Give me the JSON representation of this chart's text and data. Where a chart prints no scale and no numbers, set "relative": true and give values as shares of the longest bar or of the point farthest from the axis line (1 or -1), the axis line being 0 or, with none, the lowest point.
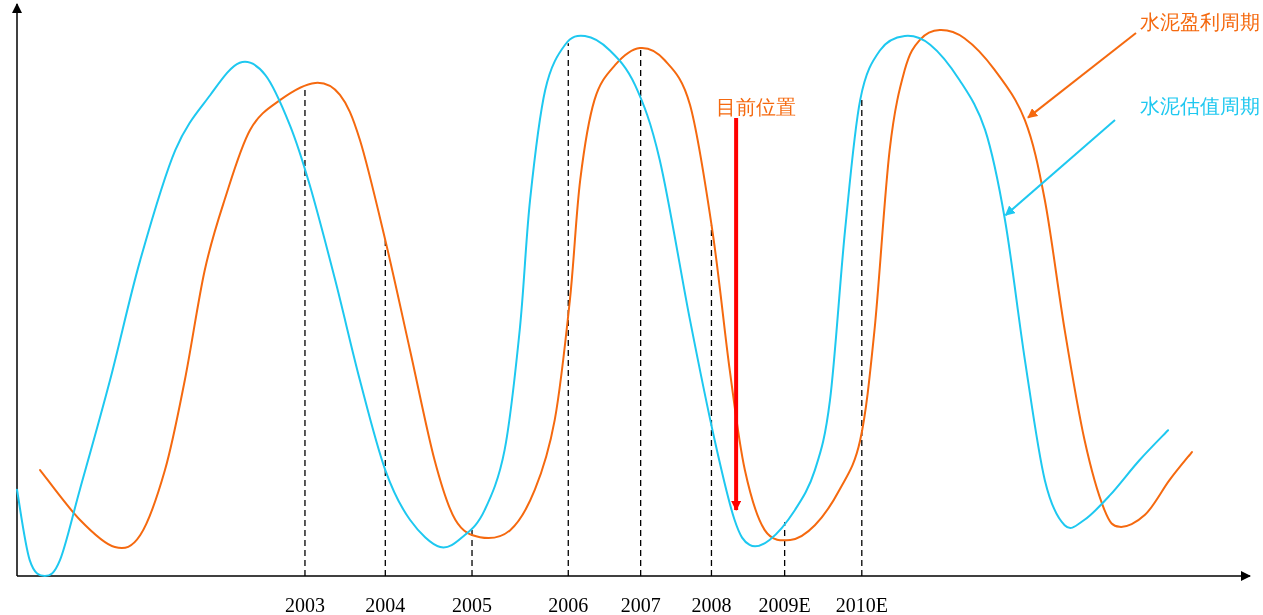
{
  "chart_data": {
    "type": "line",
    "relative": true,
    "xlim": [
      1999.38,
      2014.88
    ],
    "xticks": [
      2003,
      {
        "value": 2004.01,
        "label": "2004"
      },
      {
        "value": 2005.1,
        "label": "2005"
      },
      {
        "value": 2006.31,
        "label": "2006"
      },
      {
        "value": 2007.22,
        "label": "2007"
      },
      {
        "value": 2008.11,
        "label": "2008"
      },
      {
        "value": 2009.03,
        "label": "2009E"
      },
      {
        "value": 2010,
        "label": "2010E"
      }
    ],
    "series": [
      {
        "color": "#f5690f",
        "x": [
          1999.67,
          2000.17,
          2000.61,
          2000.93,
          2001.24,
          2001.49,
          2001.74,
          2001.99,
          2002.31,
          2002.69,
          2003.13,
          2003.44,
          2003.69,
          2004.01,
          2004.32,
          2004.63,
          2004.89,
          2005.2,
          2005.58,
          2005.89,
          2006.14,
          2006.33,
          2006.46,
          2006.64,
          2006.9,
          2007.21,
          2007.52,
          2007.84,
          2008.12,
          2008.34,
          2008.53,
          2008.78,
          2009.1,
          2009.41,
          2009.72,
          2009.98,
          2010.16,
          2010.35,
          2010.54,
          2010.73,
          2010.98,
          2011.29,
          2011.67,
          2012.05,
          2012.3,
          2012.55,
          2012.8,
          2013.05,
          2013.24,
          2013.56,
          2013.87,
          2014.15
        ],
        "values": [
          0.194,
          0.103,
          0.053,
          0.075,
          0.194,
          0.359,
          0.56,
          0.689,
          0.817,
          0.872,
          0.903,
          0.881,
          0.799,
          0.615,
          0.414,
          0.212,
          0.103,
          0.071,
          0.084,
          0.158,
          0.286,
          0.505,
          0.725,
          0.872,
          0.936,
          0.967,
          0.945,
          0.863,
          0.634,
          0.377,
          0.194,
          0.084,
          0.066,
          0.093,
          0.158,
          0.249,
          0.451,
          0.78,
          0.927,
          0.982,
          1,
          0.985,
          0.927,
          0.835,
          0.689,
          0.451,
          0.249,
          0.121,
          0.09,
          0.112,
          0.176,
          0.227
        ]
      },
      {
        "color": "#1ec8f0",
        "x": [
          1999.38,
          1999.54,
          1999.73,
          1999.92,
          2000.17,
          2000.55,
          2000.93,
          2001.37,
          2001.81,
          2002.18,
          2002.5,
          2002.81,
          2003.06,
          2003.38,
          2003.69,
          2004.01,
          2004.32,
          2004.7,
          2005.01,
          2005.26,
          2005.51,
          2005.7,
          2005.83,
          2006.02,
          2006.27,
          2006.52,
          2006.83,
          2007.15,
          2007.46,
          2007.84,
          2008.15,
          2008.4,
          2008.59,
          2008.84,
          2009.16,
          2009.41,
          2009.6,
          2009.79,
          2009.98,
          2010.23,
          2010.54,
          2010.86,
          2011.23,
          2011.55,
          2011.8,
          2012.05,
          2012.3,
          2012.55,
          2012.8,
          2013.12,
          2013.49,
          2013.85
        ],
        "values": [
          0.158,
          0.029,
          0,
          0.029,
          0.158,
          0.359,
          0.579,
          0.78,
          0.881,
          0.94,
          0.918,
          0.826,
          0.716,
          0.542,
          0.359,
          0.194,
          0.103,
          0.053,
          0.075,
          0.121,
          0.231,
          0.451,
          0.689,
          0.89,
          0.973,
          0.989,
          0.963,
          0.899,
          0.762,
          0.469,
          0.249,
          0.103,
          0.057,
          0.066,
          0.121,
          0.194,
          0.322,
          0.634,
          0.872,
          0.963,
          0.989,
          0.973,
          0.908,
          0.817,
          0.652,
          0.396,
          0.176,
          0.093,
          0.103,
          0.148,
          0.212,
          0.267
        ]
      }
    ],
    "ref_lines": [
      {
        "axis": "x",
        "value": 2003,
        "line_style": "dashed"
      },
      {
        "axis": "x",
        "value": 2004.01,
        "line_style": "dashed"
      },
      {
        "axis": "x",
        "value": 2005.1,
        "line_style": "dashed"
      },
      {
        "axis": "x",
        "value": 2006.31,
        "line_style": "dashed"
      },
      {
        "axis": "x",
        "value": 2007.22,
        "line_style": "dashed"
      },
      {
        "axis": "x",
        "value": 2008.11,
        "line_style": "dashed"
      },
      {
        "axis": "x",
        "value": 2009.03,
        "line_style": "dashed"
      },
      {
        "axis": "x",
        "value": 2010,
        "line_style": "dashed"
      }
    ],
    "annotations": [
      {
        "text": "水泥盈利周期",
        "x": 2012.05,
        "y": 0.835
      },
      {
        "text": "水泥估值周期",
        "x": 2011.77,
        "y": 0.656
      },
      {
        "text": "目前位置",
        "x": 2008.42,
        "y": 0.121
      }
    ]
  }
}
